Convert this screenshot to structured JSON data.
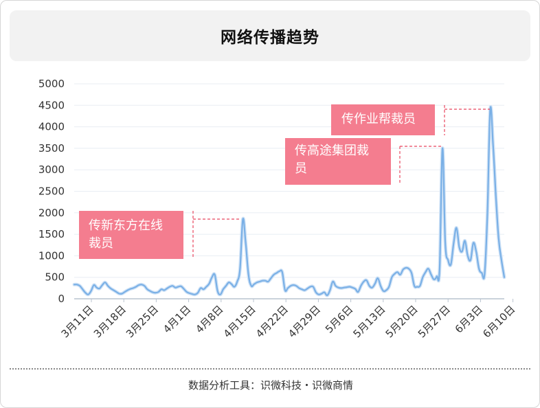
{
  "header": {
    "title": "网络传播趋势"
  },
  "footer": {
    "source": "数据分析工具：识微科技・识微商情"
  },
  "colors": {
    "line": "#7ab0e6",
    "annotation_box": "#f47d8f",
    "annotation_leader": "#e8455e",
    "grid": "#e8edf3",
    "axis": "#b9c3cf"
  },
  "chart_data": {
    "type": "line",
    "title": "",
    "xlabel": "",
    "ylabel": "",
    "ylim": [
      0,
      5000
    ],
    "yticks": [
      "0",
      "500",
      "1000",
      "1500",
      "2000",
      "2500",
      "3000",
      "3500",
      "4000",
      "4500",
      "5000"
    ],
    "x_tick_labels": [
      "3月11日",
      "3月18日",
      "3月25日",
      "4月1日",
      "4月8日",
      "4月15日",
      "4月22日",
      "4月29日",
      "5月6日",
      "5月13日",
      "5月20日",
      "5月27日",
      "6月3日",
      "6月10日"
    ],
    "grid": true,
    "series": [
      {
        "values": [
          330,
          330,
          300,
          220,
          140,
          100,
          180,
          320,
          260,
          240,
          320,
          380,
          300,
          240,
          200,
          160,
          120,
          120,
          160,
          200,
          230,
          250,
          280,
          320,
          330,
          300,
          220,
          180,
          150,
          140,
          160,
          220,
          200,
          240,
          280,
          300,
          260,
          280,
          290,
          230,
          160,
          130,
          110,
          100,
          140,
          250,
          220,
          280,
          350,
          500,
          560,
          180,
          100,
          220,
          300,
          380,
          340,
          280,
          400,
          700,
          1850,
          1300,
          560,
          300,
          340,
          380,
          400,
          420,
          420,
          400,
          480,
          560,
          600,
          640,
          620,
          200,
          250,
          300,
          320,
          300,
          250,
          220,
          200,
          240,
          280,
          280,
          150,
          100,
          120,
          150,
          80,
          200,
          400,
          300,
          260,
          250,
          260,
          270,
          280,
          260,
          230,
          160,
          300,
          400,
          430,
          300,
          260,
          350,
          480,
          300,
          180,
          200,
          280,
          500,
          580,
          620,
          560,
          680,
          720,
          700,
          600,
          300,
          280,
          300,
          500,
          620,
          700,
          560,
          450,
          520,
          700,
          3500,
          1300,
          900,
          800,
          1300,
          1650,
          1200,
          1100,
          1350,
          1000,
          900,
          1300,
          1100,
          700,
          600,
          580,
          2000,
          4400,
          3600,
          2400,
          1400,
          900,
          500
        ]
      }
    ],
    "annotations": [
      {
        "lines": [
          "传新东方在线",
          "裁员"
        ]
      },
      {
        "lines": [
          "传高途集团裁",
          "员"
        ]
      },
      {
        "lines": [
          "传作业帮裁员"
        ]
      }
    ]
  }
}
